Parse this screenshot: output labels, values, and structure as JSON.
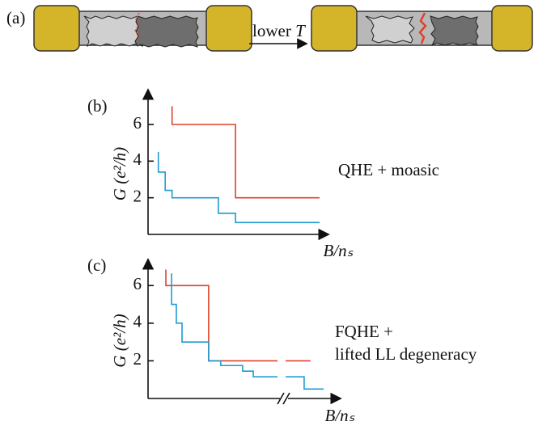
{
  "panel_a": {
    "label": "(a)",
    "arrow_text": "lower",
    "arrow_symbol": "T"
  },
  "chart_data": [
    {
      "type": "step-line",
      "panel_label": "(b)",
      "ylabel": "G (e²/h)",
      "xlabel": "B/nₛ",
      "annotations": [
        "QHE + moasic"
      ],
      "xlim": [
        0,
        100
      ],
      "ylim": [
        0,
        7.5
      ],
      "yticks": [
        2,
        4,
        6
      ],
      "series": [
        {
          "color": "#e0412c",
          "x": [
            14,
            14,
            51,
            51,
            100
          ],
          "values": [
            7,
            6,
            6,
            2,
            2
          ]
        },
        {
          "color": "#1f9bd1",
          "x": [
            6,
            6,
            10,
            10,
            14,
            14,
            41,
            41,
            51,
            51,
            100
          ],
          "values": [
            4.5,
            3.4,
            3.4,
            2.4,
            2.4,
            2,
            2,
            1.15,
            1.15,
            0.65,
            0.65
          ]
        }
      ]
    },
    {
      "type": "step-line",
      "panel_label": "(c)",
      "ylabel": "G (e²/h)",
      "xlabel": "B/nₛ",
      "annotations": [
        "FQHE +",
        "lifted LL degeneracy"
      ],
      "axis_break": true,
      "xlim": [
        0,
        100
      ],
      "ylim": [
        0,
        7
      ],
      "yticks": [
        2,
        4,
        6
      ],
      "series": [
        {
          "color": "#e0412c",
          "x": [
            9.7,
            9.7,
            33,
            33,
            70.5,
            null,
            74.9,
            88.5
          ],
          "values": [
            6.85,
            6,
            6,
            2,
            2,
            null,
            2,
            2
          ]
        },
        {
          "color": "#1f9bd1",
          "x": [
            12.8,
            12.8,
            15.4,
            15.4,
            18.5,
            18.5,
            33,
            33,
            39.6,
            39.6,
            51.5,
            51.5,
            57.3,
            57.3,
            70.5,
            null,
            74.9,
            85,
            85,
            95.6
          ],
          "values": [
            6.65,
            5,
            5,
            4,
            4,
            3,
            3,
            2,
            2,
            1.75,
            1.75,
            1.45,
            1.45,
            1.15,
            1.15,
            null,
            1.15,
            1.15,
            0.5,
            0.5
          ]
        }
      ]
    }
  ]
}
